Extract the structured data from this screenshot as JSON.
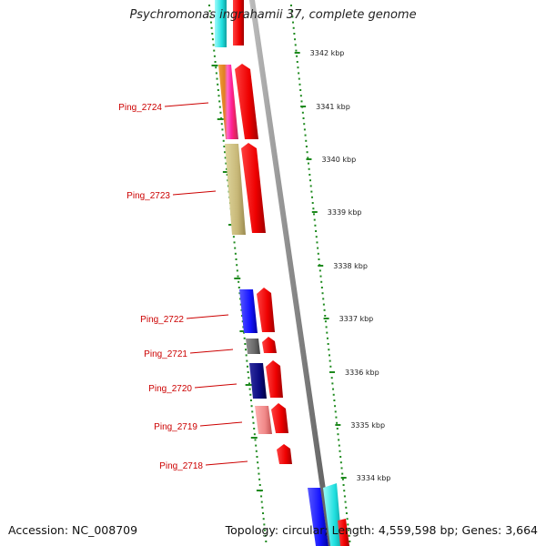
{
  "title": "Psychromonas ingrahamii 37, complete genome",
  "footer": {
    "accession": "Accession: NC_008709",
    "summary": "Topology: circular; Length: 4,559,598 bp; Genes: 3,664"
  },
  "colors": {
    "backbone": "#8a8a8a",
    "tick": "#1e8a1e",
    "label": "#cc0000",
    "leader": "#cc0000"
  },
  "scale_ticks": [
    {
      "label": "3342 kbp"
    },
    {
      "label": "3341 kbp"
    },
    {
      "label": "3340 kbp"
    },
    {
      "label": "3339 kbp"
    },
    {
      "label": "3338 kbp"
    },
    {
      "label": "3337 kbp"
    },
    {
      "label": "3336 kbp"
    },
    {
      "label": "3335 kbp"
    },
    {
      "label": "3334 kbp"
    }
  ],
  "genes": [
    {
      "label": "Ping_2724",
      "color": "#f0a040"
    },
    {
      "label": "Ping_2723",
      "color": "#c8b878"
    },
    {
      "label": "Ping_2722",
      "color": "#1a1aff"
    },
    {
      "label": "Ping_2721",
      "color": "#6a6a6a"
    },
    {
      "label": "Ping_2720",
      "color": "#0a0a80"
    },
    {
      "label": "Ping_2719",
      "color": "#f08888"
    },
    {
      "label": "Ping_2718",
      "color": "#ff0000"
    }
  ]
}
